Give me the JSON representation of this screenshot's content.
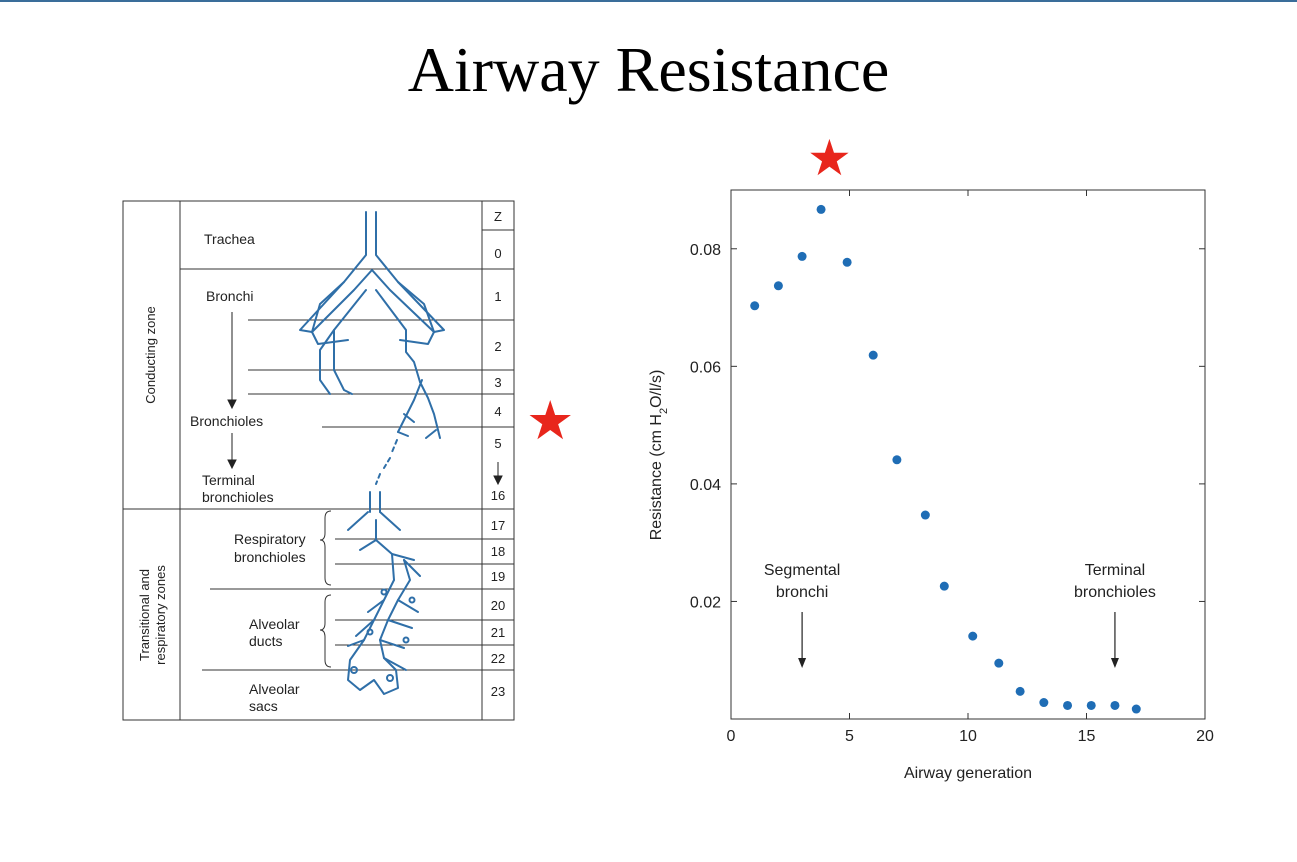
{
  "slide": {
    "title": "Airway Resistance"
  },
  "colors": {
    "accent_line": "#3a6d9a",
    "star": "#e8261c",
    "airway": "#2f6fa8",
    "dots": "#1f6db5",
    "text": "#222222"
  },
  "icons": {
    "star": "star-icon"
  },
  "diagram": {
    "zones": {
      "conducting": "Conducting zone",
      "transitional_line1": "Transitional and",
      "transitional_line2": "respiratory zones"
    },
    "labels": {
      "trachea": "Trachea",
      "bronchi": "Bronchi",
      "bronchioles": "Bronchioles",
      "terminal_line1": "Terminal",
      "terminal_line2": "bronchioles",
      "resp_line1": "Respiratory",
      "resp_line2": "bronchioles",
      "ducts_line1": "Alveolar",
      "ducts_line2": "ducts",
      "sacs_line1": "Alveolar",
      "sacs_line2": "sacs"
    },
    "z_header": "Z",
    "z_labels": [
      "0",
      "1",
      "2",
      "3",
      "4",
      "5",
      "16",
      "17",
      "18",
      "19",
      "20",
      "21",
      "22",
      "23"
    ]
  },
  "chart_data": {
    "type": "scatter",
    "title": "",
    "xlabel": "Airway generation",
    "ylabel_main": "Resistance (cm H",
    "ylabel_sub": "2",
    "ylabel_end": "O/l/s)",
    "xlim": [
      0,
      20
    ],
    "ylim": [
      0,
      0.09
    ],
    "xticks": [
      0,
      5,
      10,
      15,
      20
    ],
    "yticks": [
      0.02,
      0.04,
      0.06,
      0.08
    ],
    "ytick_labels": [
      "0.02",
      "0.04",
      "0.06",
      "0.08"
    ],
    "x": [
      1,
      2,
      3,
      3.8,
      4.9,
      6,
      7,
      8.2,
      9,
      10.2,
      11.3,
      12.2,
      13.2,
      14.2,
      15.2,
      16.2,
      17.1
    ],
    "y": [
      0.0703,
      0.0737,
      0.0787,
      0.0867,
      0.0777,
      0.0619,
      0.0441,
      0.0347,
      0.0226,
      0.0141,
      0.0095,
      0.0047,
      0.0028,
      0.0023,
      0.0023,
      0.0023,
      0.0017
    ],
    "annotations": [
      {
        "line1": "Segmental",
        "line2": "bronchi",
        "x": 3
      },
      {
        "line1": "Terminal",
        "line2": "bronchioles",
        "x": 16.2
      }
    ],
    "grid": false
  }
}
